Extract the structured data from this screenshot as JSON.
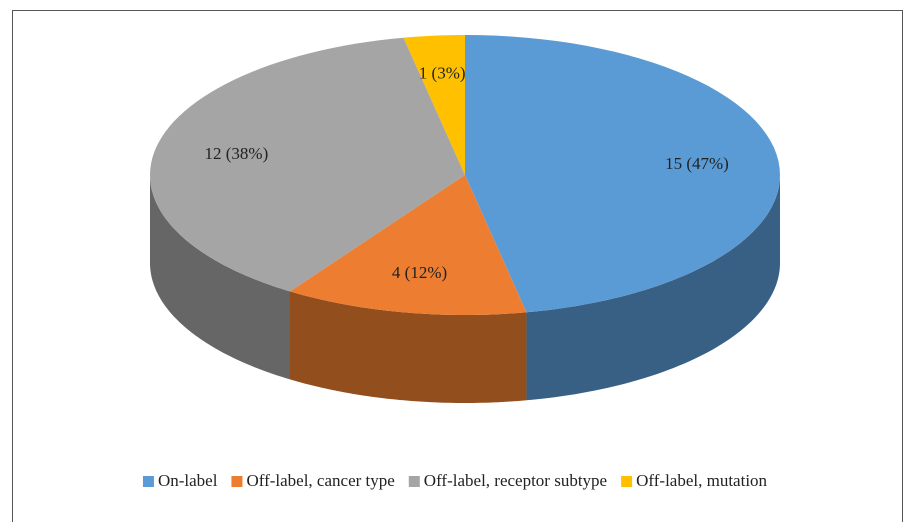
{
  "chart_data": {
    "type": "pie3d",
    "categories": [
      "On-label",
      "Off-label, cancer type",
      "Off-label, receptor subtype",
      "Off-label, mutation"
    ],
    "values": [
      15,
      4,
      12,
      1
    ],
    "value_labels": [
      "15 (47%)",
      "4 (12%)",
      "12 (38%)",
      "1 (3%)"
    ],
    "colors": [
      "#5b9bd5",
      "#ed7d31",
      "#a5a5a5",
      "#ffc000"
    ],
    "legend": "bottom"
  }
}
